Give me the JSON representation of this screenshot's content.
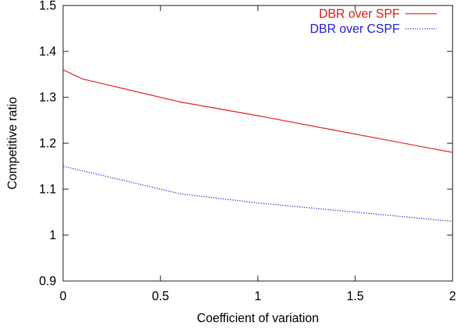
{
  "chart_data": {
    "type": "line",
    "title": "",
    "xlabel": "Coefficient of variation",
    "ylabel": "Competitive ratio",
    "xlim": [
      0,
      2
    ],
    "ylim": [
      0.9,
      1.5
    ],
    "x_ticks": [
      0,
      0.5,
      1,
      1.5,
      2
    ],
    "x_tick_labels": [
      "0",
      "0.5",
      "1",
      "1.5",
      "2"
    ],
    "y_ticks": [
      0.9,
      1,
      1.1,
      1.2,
      1.3,
      1.4,
      1.5
    ],
    "y_tick_labels": [
      "0.9",
      "1",
      "1.1",
      "1.2",
      "1.3",
      "1.4",
      "1.5"
    ],
    "grid": false,
    "legend_position": "top-right",
    "series": [
      {
        "name": "DBR over SPF",
        "color": "#e31a1c",
        "line_style": "solid",
        "x": [
          0,
          0.1,
          0.6,
          1,
          1.5,
          2
        ],
        "y": [
          1.36,
          1.34,
          1.29,
          1.26,
          1.22,
          1.18
        ]
      },
      {
        "name": "DBR over CSPF",
        "color": "#1f1fd0",
        "line_style": "dotted",
        "x": [
          0,
          0.1,
          0.6,
          1,
          1.5,
          2
        ],
        "y": [
          1.15,
          1.14,
          1.09,
          1.07,
          1.05,
          1.03
        ]
      }
    ]
  }
}
